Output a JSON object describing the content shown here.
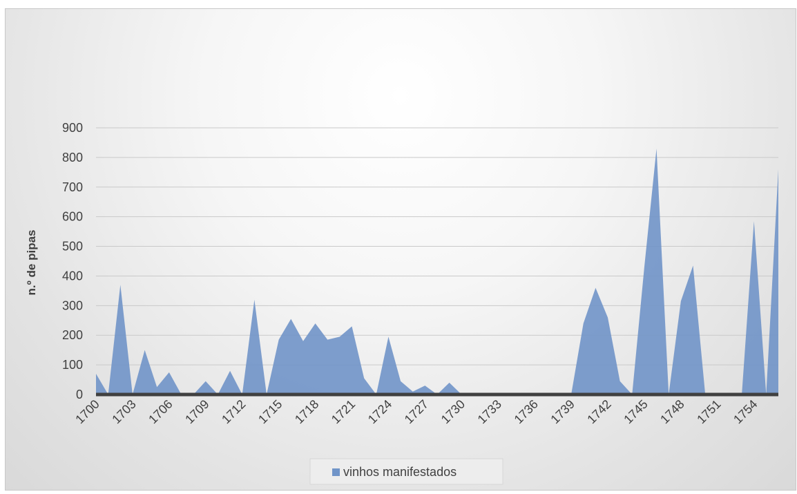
{
  "chart_data": {
    "type": "area",
    "title": "",
    "xlabel": "",
    "ylabel": "n.º de pipas",
    "ylim": [
      0,
      900
    ],
    "yticks": [
      0,
      100,
      200,
      300,
      400,
      500,
      600,
      700,
      800,
      900
    ],
    "xlim": [
      1700,
      1756
    ],
    "x_tick_labels": [
      "1700",
      "1703",
      "1706",
      "1709",
      "1712",
      "1715",
      "1718",
      "1721",
      "1724",
      "1727",
      "1730",
      "1733",
      "1736",
      "1739",
      "1742",
      "1745",
      "1748",
      "1751",
      "1754"
    ],
    "grid": true,
    "legend": "bottom",
    "series": [
      {
        "name": "vinhos manifestados",
        "color": "#7094c8",
        "x": [
          1700,
          1701,
          1702,
          1703,
          1704,
          1705,
          1706,
          1707,
          1708,
          1709,
          1710,
          1711,
          1712,
          1713,
          1714,
          1715,
          1716,
          1717,
          1718,
          1719,
          1720,
          1721,
          1722,
          1723,
          1724,
          1725,
          1726,
          1727,
          1728,
          1729,
          1730,
          1731,
          1732,
          1733,
          1734,
          1735,
          1736,
          1737,
          1738,
          1739,
          1740,
          1741,
          1742,
          1743,
          1744,
          1745,
          1746,
          1747,
          1748,
          1749,
          1750,
          1751,
          1752,
          1753,
          1754,
          1755,
          1756
        ],
        "values": [
          70,
          0,
          370,
          0,
          150,
          25,
          75,
          0,
          0,
          45,
          0,
          80,
          0,
          320,
          0,
          185,
          255,
          180,
          240,
          185,
          195,
          230,
          55,
          0,
          195,
          45,
          10,
          30,
          0,
          40,
          0,
          0,
          0,
          0,
          0,
          0,
          0,
          0,
          0,
          0,
          240,
          360,
          260,
          45,
          0,
          430,
          830,
          0,
          315,
          435,
          0,
          0,
          0,
          0,
          585,
          0,
          760
        ]
      }
    ]
  }
}
